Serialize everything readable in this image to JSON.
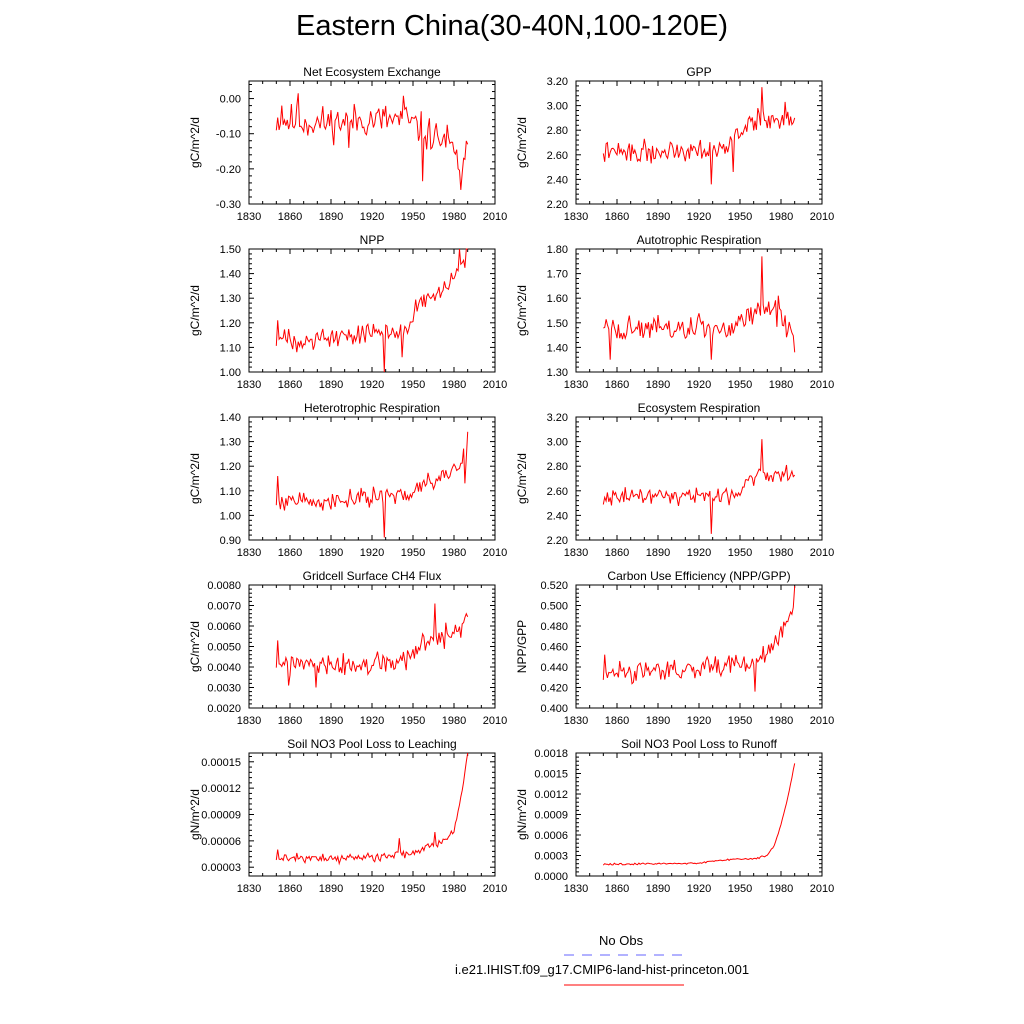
{
  "figure": {
    "title": "Eastern China(30-40N,100-120E)",
    "line_color": "#ff0000",
    "obs_color": "#6666ff"
  },
  "legend": {
    "obs_label": "No Obs",
    "model_label": "i.e21.IHIST.f09_g17.CMIP6-land-hist-princeton.001"
  },
  "chart_data": [
    {
      "type": "line",
      "title": "Net Ecosystem Exchange",
      "xlabel": "",
      "ylabel": "gC/m^2/d",
      "xlim": [
        1830,
        2010
      ],
      "ylim": [
        -0.3,
        0.05
      ],
      "xticks": [
        "1830",
        "1860",
        "1890",
        "1920",
        "1950",
        "1980",
        "2010"
      ],
      "yticks": [
        "0.00",
        "-0.10",
        "-0.20",
        "-0.30"
      ],
      "start_year": 1850,
      "end_year": 1990,
      "anchors": [
        [
          1850,
          -0.06
        ],
        [
          1880,
          -0.07
        ],
        [
          1920,
          -0.06
        ],
        [
          1945,
          -0.06
        ],
        [
          1960,
          -0.1
        ],
        [
          1975,
          -0.12
        ],
        [
          1985,
          -0.2
        ],
        [
          1990,
          -0.14
        ]
      ],
      "amp": 0.045,
      "seed": 11,
      "spikes": [
        [
          1854,
          -0.02
        ],
        [
          1866,
          0.015
        ],
        [
          1903,
          -0.14
        ],
        [
          1943,
          0.008
        ],
        [
          1957,
          -0.235
        ],
        [
          1985,
          -0.26
        ],
        [
          1987,
          -0.17
        ]
      ]
    },
    {
      "type": "line",
      "title": "GPP",
      "xlabel": "",
      "ylabel": "gC/m^2/d",
      "xlim": [
        1830,
        2010
      ],
      "ylim": [
        2.2,
        3.2
      ],
      "xticks": [
        "1830",
        "1860",
        "1890",
        "1920",
        "1950",
        "1980",
        "2010"
      ],
      "yticks": [
        "2.20",
        "2.40",
        "2.60",
        "2.80",
        "3.00",
        "3.20"
      ],
      "start_year": 1850,
      "end_year": 1990,
      "anchors": [
        [
          1850,
          2.62
        ],
        [
          1890,
          2.62
        ],
        [
          1920,
          2.66
        ],
        [
          1940,
          2.65
        ],
        [
          1950,
          2.8
        ],
        [
          1965,
          2.88
        ],
        [
          1980,
          2.9
        ],
        [
          1990,
          2.86
        ]
      ],
      "amp": 0.08,
      "seed": 22,
      "spikes": [
        [
          1929,
          2.36
        ],
        [
          1945,
          2.46
        ],
        [
          1963,
          2.98
        ],
        [
          1966,
          3.15
        ],
        [
          1983,
          3.03
        ]
      ]
    },
    {
      "type": "line",
      "title": "NPP",
      "xlabel": "",
      "ylabel": "gC/m^2/d",
      "xlim": [
        1830,
        2010
      ],
      "ylim": [
        1.0,
        1.5
      ],
      "xticks": [
        "1830",
        "1860",
        "1890",
        "1920",
        "1950",
        "1980",
        "2010"
      ],
      "yticks": [
        "1.00",
        "1.10",
        "1.20",
        "1.30",
        "1.40",
        "1.50"
      ],
      "start_year": 1850,
      "end_year": 1990,
      "anchors": [
        [
          1850,
          1.13
        ],
        [
          1890,
          1.14
        ],
        [
          1920,
          1.16
        ],
        [
          1945,
          1.18
        ],
        [
          1955,
          1.28
        ],
        [
          1970,
          1.32
        ],
        [
          1980,
          1.38
        ],
        [
          1990,
          1.47
        ]
      ],
      "amp": 0.04,
      "seed": 33,
      "spikes": [
        [
          1851,
          1.21
        ],
        [
          1929,
          1.0
        ],
        [
          1942,
          1.06
        ],
        [
          1984,
          1.5
        ],
        [
          1989,
          1.5
        ]
      ]
    },
    {
      "type": "line",
      "title": "Autotrophic Respiration",
      "xlabel": "",
      "ylabel": "gC/m^2/d",
      "xlim": [
        1830,
        2010
      ],
      "ylim": [
        1.3,
        1.8
      ],
      "xticks": [
        "1830",
        "1860",
        "1890",
        "1920",
        "1950",
        "1980",
        "2010"
      ],
      "yticks": [
        "1.30",
        "1.40",
        "1.50",
        "1.60",
        "1.70",
        "1.80"
      ],
      "start_year": 1850,
      "end_year": 1990,
      "anchors": [
        [
          1850,
          1.48
        ],
        [
          1890,
          1.47
        ],
        [
          1920,
          1.48
        ],
        [
          1940,
          1.47
        ],
        [
          1955,
          1.53
        ],
        [
          1965,
          1.57
        ],
        [
          1980,
          1.52
        ],
        [
          1990,
          1.4
        ]
      ],
      "amp": 0.05,
      "seed": 44,
      "spikes": [
        [
          1855,
          1.35
        ],
        [
          1929,
          1.35
        ],
        [
          1966,
          1.77
        ],
        [
          1978,
          1.61
        ],
        [
          1990,
          1.38
        ]
      ]
    },
    {
      "type": "line",
      "title": "Heterotrophic Respiration",
      "xlabel": "",
      "ylabel": "gC/m^2/d",
      "xlim": [
        1830,
        2010
      ],
      "ylim": [
        0.9,
        1.4
      ],
      "xticks": [
        "1830",
        "1860",
        "1890",
        "1920",
        "1950",
        "1980",
        "2010"
      ],
      "yticks": [
        "0.90",
        "1.00",
        "1.10",
        "1.20",
        "1.30",
        "1.40"
      ],
      "start_year": 1850,
      "end_year": 1990,
      "anchors": [
        [
          1850,
          1.06
        ],
        [
          1890,
          1.06
        ],
        [
          1920,
          1.07
        ],
        [
          1945,
          1.08
        ],
        [
          1955,
          1.12
        ],
        [
          1970,
          1.16
        ],
        [
          1985,
          1.2
        ],
        [
          1990,
          1.26
        ]
      ],
      "amp": 0.035,
      "seed": 55,
      "spikes": [
        [
          1851,
          1.16
        ],
        [
          1929,
          0.91
        ],
        [
          1988,
          1.13
        ],
        [
          1990,
          1.34
        ]
      ]
    },
    {
      "type": "line",
      "title": "Ecosystem Respiration",
      "xlabel": "",
      "ylabel": "gC/m^2/d",
      "xlim": [
        1830,
        2010
      ],
      "ylim": [
        2.2,
        3.2
      ],
      "xticks": [
        "1830",
        "1860",
        "1890",
        "1920",
        "1950",
        "1980",
        "2010"
      ],
      "yticks": [
        "2.20",
        "2.40",
        "2.60",
        "2.80",
        "3.00",
        "3.20"
      ],
      "start_year": 1850,
      "end_year": 1990,
      "anchors": [
        [
          1850,
          2.55
        ],
        [
          1890,
          2.56
        ],
        [
          1920,
          2.57
        ],
        [
          1945,
          2.56
        ],
        [
          1955,
          2.68
        ],
        [
          1965,
          2.74
        ],
        [
          1980,
          2.72
        ],
        [
          1990,
          2.7
        ]
      ],
      "amp": 0.06,
      "seed": 66,
      "spikes": [
        [
          1929,
          2.25
        ],
        [
          1966,
          3.02
        ],
        [
          1984,
          2.81
        ]
      ]
    },
    {
      "type": "line",
      "title": "Gridcell Surface CH4 Flux",
      "xlabel": "",
      "ylabel": "gC/m^2/d",
      "xlim": [
        1830,
        2010
      ],
      "ylim": [
        0.002,
        0.008
      ],
      "xticks": [
        "1830",
        "1860",
        "1890",
        "1920",
        "1950",
        "1980",
        "2010"
      ],
      "yticks": [
        "0.0020",
        "0.0030",
        "0.0040",
        "0.0050",
        "0.0060",
        "0.0070",
        "0.0080"
      ],
      "start_year": 1850,
      "end_year": 1990,
      "anchors": [
        [
          1850,
          0.0042
        ],
        [
          1890,
          0.004
        ],
        [
          1920,
          0.0041
        ],
        [
          1945,
          0.0043
        ],
        [
          1955,
          0.005
        ],
        [
          1970,
          0.0054
        ],
        [
          1985,
          0.0058
        ],
        [
          1990,
          0.0062
        ]
      ],
      "amp": 0.0005,
      "seed": 77,
      "spikes": [
        [
          1851,
          0.0053
        ],
        [
          1859,
          0.0031
        ],
        [
          1879,
          0.003
        ],
        [
          1966,
          0.0071
        ],
        [
          1989,
          0.0066
        ]
      ]
    },
    {
      "type": "line",
      "title": "Carbon Use Efficiency (NPP/GPP)",
      "xlabel": "",
      "ylabel": "NPP/GPP",
      "xlim": [
        1830,
        2010
      ],
      "ylim": [
        0.4,
        0.52
      ],
      "xticks": [
        "1830",
        "1860",
        "1890",
        "1920",
        "1950",
        "1980",
        "2010"
      ],
      "yticks": [
        "0.400",
        "0.420",
        "0.440",
        "0.460",
        "0.480",
        "0.500",
        "0.520"
      ],
      "start_year": 1850,
      "end_year": 1990,
      "anchors": [
        [
          1850,
          0.436
        ],
        [
          1890,
          0.436
        ],
        [
          1920,
          0.437
        ],
        [
          1945,
          0.44
        ],
        [
          1960,
          0.445
        ],
        [
          1975,
          0.46
        ],
        [
          1985,
          0.485
        ],
        [
          1990,
          0.505
        ]
      ],
      "amp": 0.009,
      "seed": 88,
      "spikes": [
        [
          1851,
          0.452
        ],
        [
          1961,
          0.416
        ],
        [
          1990,
          0.519
        ]
      ]
    },
    {
      "type": "line",
      "title": "Soil NO3 Pool Loss to Leaching",
      "xlabel": "",
      "ylabel": "gN/m^2/d",
      "xlim": [
        1830,
        2010
      ],
      "ylim": [
        2e-05,
        0.00016
      ],
      "xticks": [
        "1830",
        "1860",
        "1890",
        "1920",
        "1950",
        "1980",
        "2010"
      ],
      "yticks": [
        "0.00003",
        "0.00006",
        "0.00009",
        "0.00012",
        "0.00015"
      ],
      "start_year": 1850,
      "end_year": 1990,
      "anchors": [
        [
          1850,
          4e-05
        ],
        [
          1890,
          4e-05
        ],
        [
          1920,
          4.2e-05
        ],
        [
          1940,
          4.5e-05
        ],
        [
          1955,
          5e-05
        ],
        [
          1970,
          5.8e-05
        ],
        [
          1980,
          7e-05
        ],
        [
          1985,
          0.00011
        ],
        [
          1990,
          0.00016
        ]
      ],
      "amp": 4.5e-06,
      "seed": 99,
      "spikes": [
        [
          1851,
          5e-05
        ],
        [
          1940,
          6.3e-05
        ],
        [
          1966,
          7e-05
        ]
      ]
    },
    {
      "type": "line",
      "title": "Soil NO3 Pool Loss to Runoff",
      "xlabel": "",
      "ylabel": "gN/m^2/d",
      "xlim": [
        1830,
        2010
      ],
      "ylim": [
        0.0,
        0.0018
      ],
      "xticks": [
        "1830",
        "1860",
        "1890",
        "1920",
        "1950",
        "1980",
        "2010"
      ],
      "yticks": [
        "0.0000",
        "0.0003",
        "0.0006",
        "0.0009",
        "0.0012",
        "0.0015",
        "0.0018"
      ],
      "start_year": 1850,
      "end_year": 1990,
      "anchors": [
        [
          1850,
          0.00017
        ],
        [
          1890,
          0.00018
        ],
        [
          1920,
          0.00019
        ],
        [
          1940,
          0.00024
        ],
        [
          1960,
          0.00025
        ],
        [
          1970,
          0.0003
        ],
        [
          1975,
          0.00045
        ],
        [
          1980,
          0.00075
        ],
        [
          1985,
          0.00115
        ],
        [
          1990,
          0.00165
        ]
      ],
      "amp": 1.2e-05,
      "seed": 110,
      "spikes": []
    }
  ]
}
